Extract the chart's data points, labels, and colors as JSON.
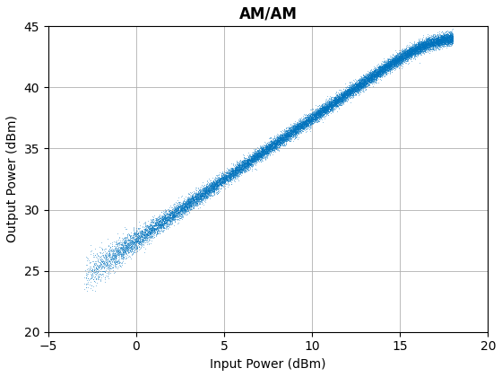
{
  "title": "AM/AM",
  "xlabel": "Input Power (dBm)",
  "ylabel": "Output Power (dBm)",
  "xlim": [
    -5,
    20
  ],
  "ylim": [
    20,
    45
  ],
  "xticks": [
    -5,
    0,
    5,
    10,
    15,
    20
  ],
  "yticks": [
    20,
    25,
    30,
    35,
    40,
    45
  ],
  "marker_color": "#0072BD",
  "marker_size": 1.5,
  "grid": true,
  "n_points": 25000,
  "x_min": -3.0,
  "x_max": 18.0,
  "gain_db": 27.5,
  "p_sat_out": 44.2,
  "p_sat_in": 17.0,
  "noise_base": 0.5,
  "noise_low_extra": 1.2
}
